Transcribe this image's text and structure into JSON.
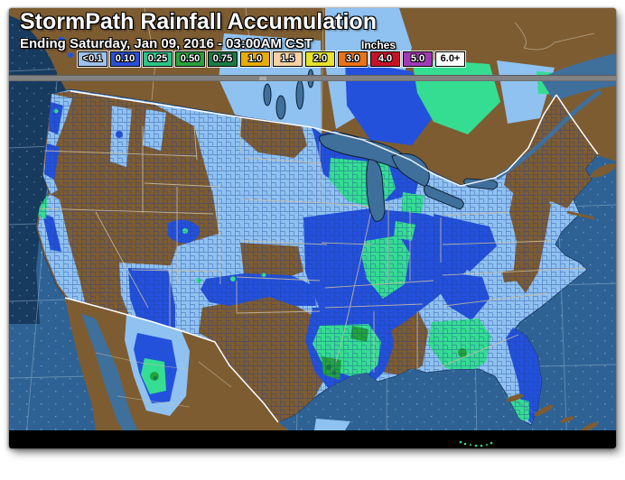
{
  "header": {
    "title": "StormPath Rainfall Accumulation",
    "subtitle": "Ending Saturday, Jan 09, 2016 - 03:00AM CST",
    "units_label": "Inches"
  },
  "legend": {
    "items": [
      {
        "label": "<0.1",
        "color": "#9dc2ee",
        "text_color": "#ffffff"
      },
      {
        "label": "0.10",
        "color": "#2a50d8",
        "text_color": "#ffffff"
      },
      {
        "label": "0.25",
        "color": "#2cc489",
        "text_color": "#ffffff"
      },
      {
        "label": "0.50",
        "color": "#2aa23a",
        "text_color": "#ffffff"
      },
      {
        "label": "0.75",
        "color": "#1d7b44",
        "text_color": "#ffffff"
      },
      {
        "label": "1.0",
        "color": "#e8ad05",
        "text_color": "#ffffff"
      },
      {
        "label": "1.5",
        "color": "#f9d0a1",
        "text_color": "#ffffff"
      },
      {
        "label": "2.0",
        "color": "#e7e32a",
        "text_color": "#ffffff"
      },
      {
        "label": "3.0",
        "color": "#eb7314",
        "text_color": "#ffffff"
      },
      {
        "label": "4.0",
        "color": "#c81126",
        "text_color": "#ffffff"
      },
      {
        "label": "5.0",
        "color": "#a23ab6",
        "text_color": "#ffffff"
      },
      {
        "label": "6.0+",
        "color": "#ffffff",
        "text_color": "#000000"
      }
    ]
  },
  "map": {
    "palette": {
      "ocean_atlantic": "#2e6295",
      "ocean_pacific": "#16395c",
      "lakes": "#3f6f9b",
      "dry_land": "#7d5c32",
      "rain_lt01": "#8fc2f1",
      "rain_010": "#2351dc",
      "rain_025": "#35dd92",
      "rain_050": "#22a43c",
      "rain_075": "#157a40",
      "county_line": "#1e3c96",
      "state_line": "#cdbfa0",
      "border_line": "#ffffff",
      "graticule": "#9db8cc",
      "divider_bar": "#828282",
      "bottom_bar": "#000000"
    }
  }
}
